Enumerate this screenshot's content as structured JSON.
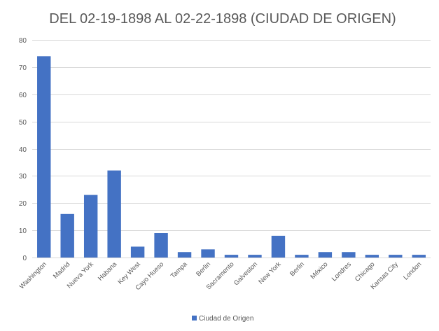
{
  "chart_data": {
    "type": "bar",
    "title": "DEL 02-19-1898 AL 02-22-1898 (CIUDAD DE ORIGEN)",
    "xlabel": "",
    "ylabel": "",
    "ylim": [
      0,
      80
    ],
    "yticks": [
      0,
      10,
      20,
      30,
      40,
      50,
      60,
      70,
      80
    ],
    "grid": true,
    "legend_position": "bottom",
    "categories": [
      "Washington",
      "Madrid",
      "Nueva York",
      "Habana",
      "Key West",
      "Cayo Hueso",
      "Tampa",
      "Berlin",
      "Sacramento",
      "Galveston",
      "New York",
      "Berlin",
      "México",
      "Londres",
      "Chicago",
      "Kansas City",
      "London"
    ],
    "series": [
      {
        "name": "Ciudad de Origen",
        "color": "#4472c4",
        "values": [
          74,
          16,
          23,
          32,
          4,
          9,
          2,
          3,
          1,
          1,
          8,
          1,
          2,
          2,
          1,
          1,
          1
        ]
      }
    ]
  }
}
